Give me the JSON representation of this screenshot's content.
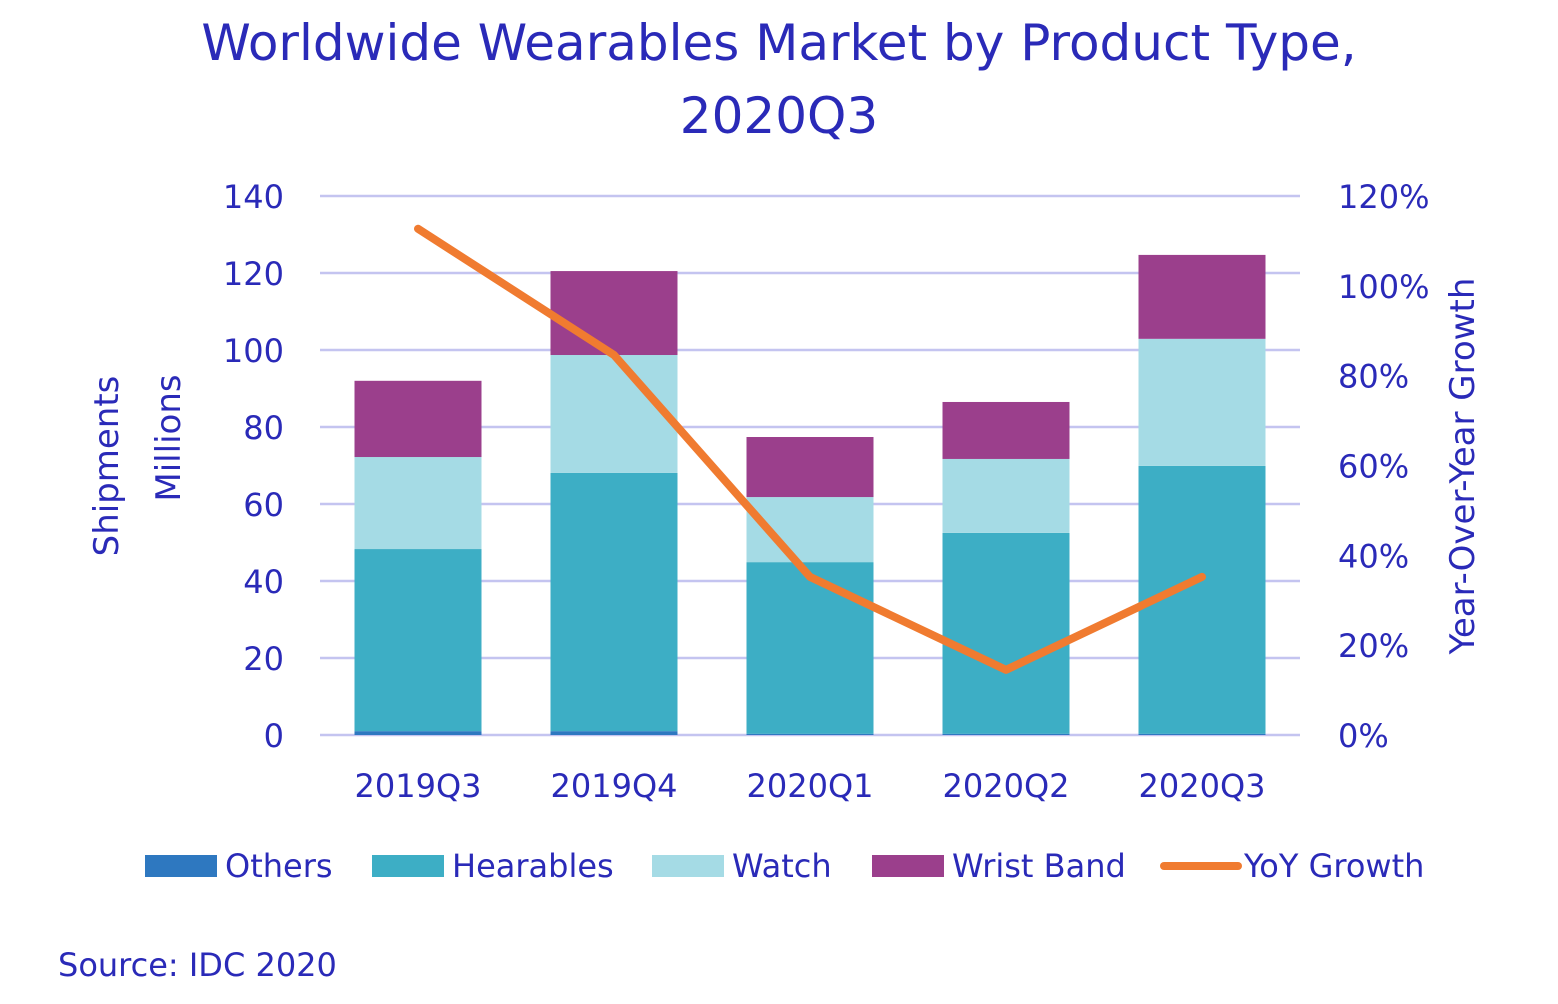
{
  "chart_data": {
    "type": "bar",
    "stacked": true,
    "title": [
      "Worldwide Wearables Market by Product Type,",
      "2020Q3"
    ],
    "categories": [
      "2019Q3",
      "2019Q4",
      "2020Q1",
      "2020Q2",
      "2020Q3"
    ],
    "ylabel": [
      "Shipments",
      "Millions"
    ],
    "ylabel_right": "Year-Over-Year Growth",
    "ylim": [
      0,
      140
    ],
    "yticks": [
      0,
      20,
      40,
      60,
      80,
      100,
      120,
      140
    ],
    "ylim_right": [
      0,
      120
    ],
    "yticks_right": [
      "0%",
      "20%",
      "40%",
      "60%",
      "80%",
      "100%",
      "120%"
    ],
    "grid": true,
    "legend_placement": "bottom",
    "series": [
      {
        "name": "Others",
        "color": "#2e78c0",
        "values": [
          1.0,
          1.0,
          0.3,
          0.3,
          0.3
        ]
      },
      {
        "name": "Hearables",
        "color": "#3daec5",
        "values": [
          47.3,
          67.1,
          44.6,
          52.2,
          69.6
        ]
      },
      {
        "name": "Watch",
        "color": "#a5dbe5",
        "values": [
          23.9,
          30.6,
          16.9,
          19.2,
          33.0
        ]
      },
      {
        "name": "Wrist Band",
        "color": "#9b3f8c",
        "values": [
          19.8,
          21.8,
          15.6,
          14.8,
          21.8
        ]
      }
    ],
    "line_series": {
      "name": "YoY Growth",
      "color": "#f07b30",
      "axis": "right",
      "values": [
        112.7,
        84.6,
        35.2,
        14.5,
        35.2
      ]
    },
    "source": "Source: IDC 2020"
  }
}
